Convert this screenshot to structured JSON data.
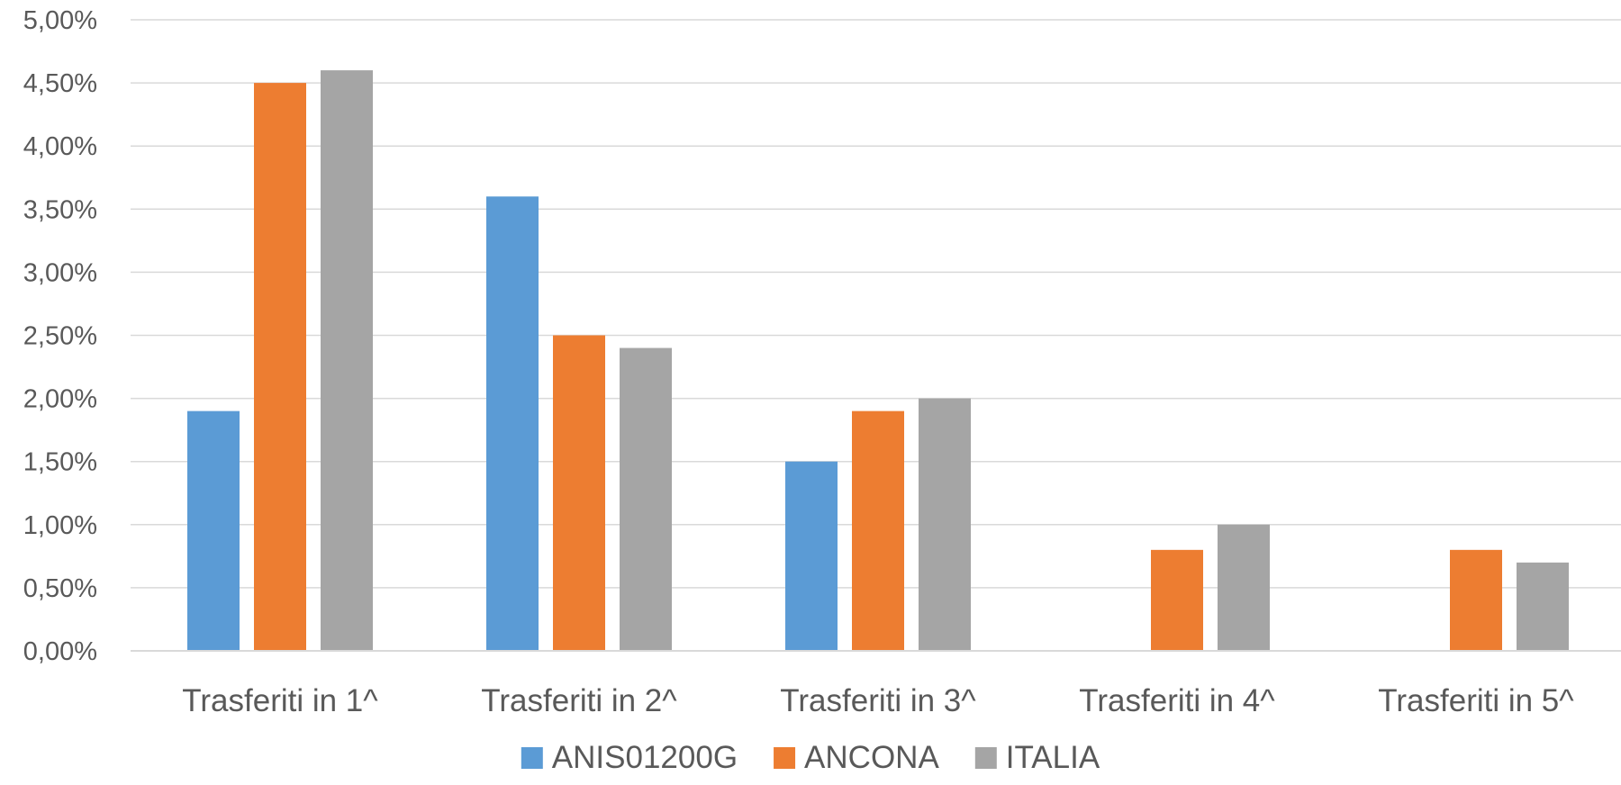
{
  "chart_data": {
    "type": "bar",
    "title": "",
    "xlabel": "",
    "ylabel": "",
    "categories": [
      "Trasferiti in 1^",
      "Trasferiti in 2^",
      "Trasferiti in 3^",
      "Trasferiti in 4^",
      "Trasferiti in 5^"
    ],
    "series": [
      {
        "name": "ANIS01200G",
        "color": "#5b9bd5",
        "values": [
          1.9,
          3.6,
          1.5,
          null,
          null
        ]
      },
      {
        "name": "ANCONA",
        "color": "#ed7d31",
        "values": [
          4.5,
          2.5,
          1.9,
          0.8,
          0.8
        ]
      },
      {
        "name": "ITALIA",
        "color": "#a5a5a5",
        "values": [
          4.6,
          2.4,
          2.0,
          1.0,
          0.7
        ]
      }
    ],
    "ylim": [
      0,
      5
    ],
    "yticks": [
      0,
      0.5,
      1,
      1.5,
      2,
      2.5,
      3,
      3.5,
      4,
      4.5,
      5
    ],
    "ytick_labels": [
      "0,00%",
      "0,50%",
      "1,00%",
      "1,50%",
      "2,00%",
      "2,50%",
      "3,00%",
      "3,50%",
      "4,00%",
      "4,50%",
      "5,00%"
    ],
    "grid": true,
    "legend_position": "bottom"
  }
}
